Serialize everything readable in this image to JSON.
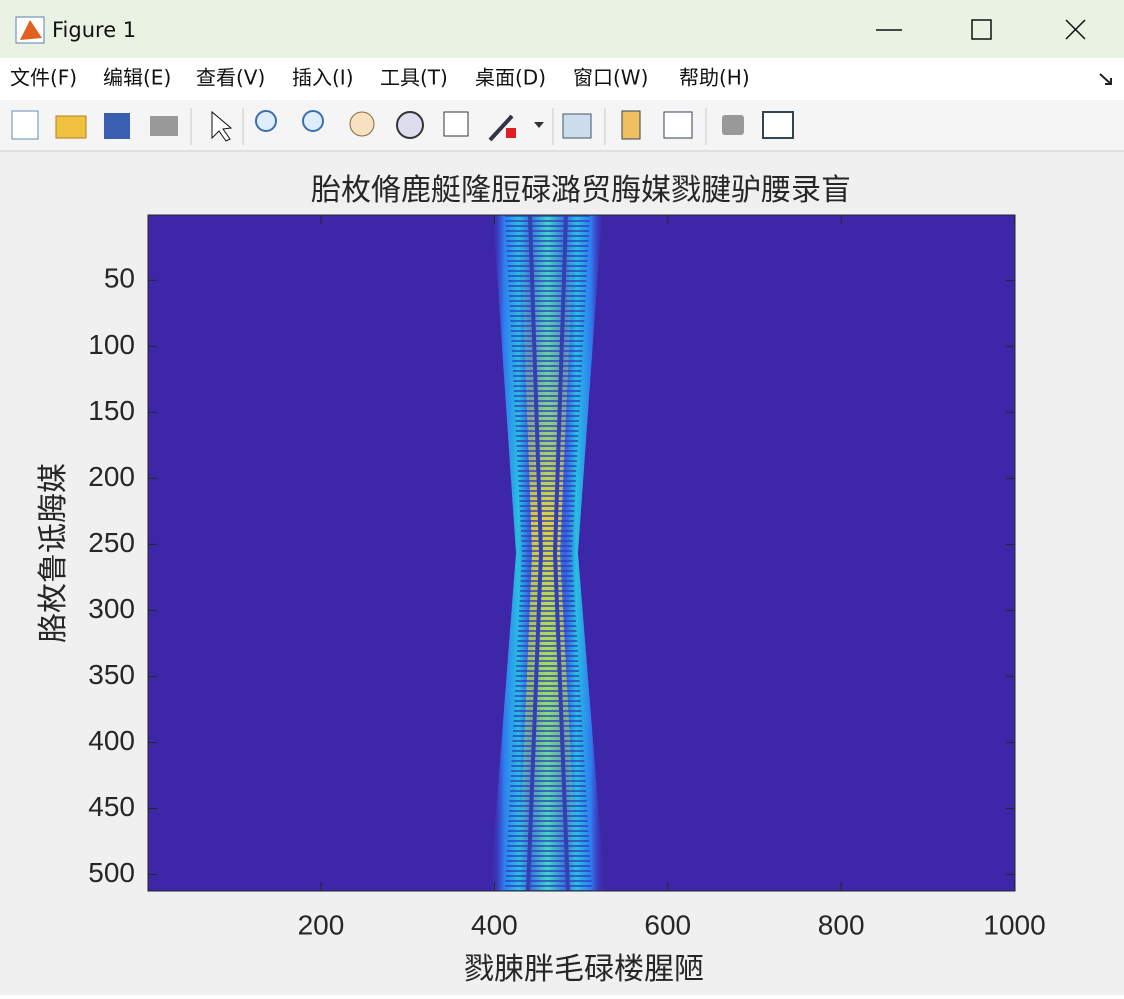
{
  "window": {
    "title": "Figure 1",
    "menu": [
      "文件(F)",
      "编辑(E)",
      "查看(V)",
      "插入(I)",
      "工具(T)",
      "桌面(D)",
      "窗口(W)",
      "帮助(H)"
    ]
  },
  "chart_data": {
    "type": "image",
    "title": "胎枚脩鹿艇隆脰碌潞贸脢媒戮腱驴腰录盲",
    "x_label": "戮脨胖毛碌楼腥陋",
    "y_label": "胳枚鲁诋脢媒",
    "xlim": [
      0.5,
      1000.5
    ],
    "xticks": [
      200,
      400,
      600,
      800,
      1000
    ],
    "ylim": [
      0.5,
      512.5
    ],
    "yticks": [
      50,
      100,
      150,
      200,
      250,
      300,
      350,
      400,
      450,
      500
    ],
    "y_reversed": true
  }
}
